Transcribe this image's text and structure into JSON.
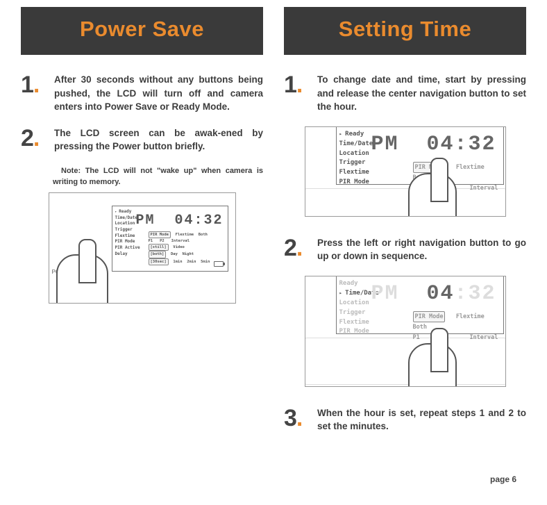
{
  "left": {
    "title": "Power Save",
    "steps": [
      "After 30 seconds without any buttons being pushed, the LCD will turn off and camera enters into Power Save or Ready Mode.",
      "The LCD screen can be awak-ened by pressing the Power button briefly."
    ],
    "note": "Note: The LCD will not \"wake up\" when camera is writing to memory.",
    "lcd": {
      "menu": [
        "Ready",
        "Time/Date",
        "Location",
        "Trigger",
        "Flextime",
        "PIR Mode",
        "PIR Active",
        "Delay"
      ],
      "selected": 0,
      "pm": "PM",
      "time": "04:32",
      "opts": [
        [
          "PIR Mode",
          "Flextime",
          "Both"
        ],
        [
          "P1",
          "P2",
          "Interval"
        ],
        [
          "[still]",
          "Video",
          ""
        ],
        [
          "[both]",
          "Day",
          "Night"
        ],
        [
          "[30sec]",
          "1min",
          "2min",
          "5min"
        ]
      ],
      "powerLabel": "POWER"
    }
  },
  "right": {
    "title": "Setting Time",
    "steps": [
      "To change date and time, start by pressing and release the center navigation button to set the hour.",
      "Press the left or right navigation button to go up or down in sequence.",
      "When the hour is set, repeat steps 1 and 2 to set the minutes."
    ],
    "lcd1": {
      "menu": [
        "Ready",
        "Time/Date",
        "Location",
        "Trigger",
        "Flextime",
        "PIR Mode"
      ],
      "selected": 0,
      "pm": "PM",
      "time": "04:32",
      "opts": [
        [
          "PIR Mode",
          "Flextime",
          "Both"
        ],
        [
          "P1",
          "P2",
          "Interval"
        ]
      ]
    },
    "lcd2": {
      "menu": [
        "Ready",
        "Time/Date",
        "Location",
        "Trigger",
        "Flextime",
        "PIR Mode"
      ],
      "selected": 1,
      "pm": "PM",
      "time_hour": "04",
      "time_min": ":32",
      "opts": [
        [
          "PIR Mode",
          "Flextime",
          "Both"
        ],
        [
          "P1",
          "P2",
          "Interval"
        ]
      ]
    }
  },
  "page": "page 6",
  "colors": {
    "accent": "#ea8b2e",
    "header_bg": "#3a3a3a",
    "text": "#3c3c3c"
  }
}
